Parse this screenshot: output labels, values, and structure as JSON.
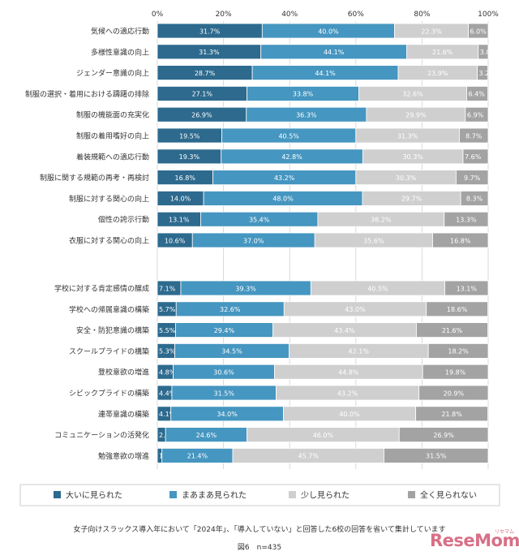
{
  "chart_data": {
    "type": "bar",
    "orientation": "horizontal",
    "stacked": true,
    "percent": true,
    "xlim": [
      0,
      100
    ],
    "x_ticks": [
      "0%",
      "20%",
      "40%",
      "60%",
      "80%",
      "100%"
    ],
    "grid": true,
    "legend_position": "bottom",
    "categories": [
      "気候への適応行動",
      "多様性意識の向上",
      "ジェンダー意識の向上",
      "制服の選択・着用における躊躇の排除",
      "制服の機能面の充実化",
      "制服の着用嗜好の向上",
      "着装規範への適応行動",
      "制服に関する規範の再考・再検討",
      "制服に対する関心の向上",
      "個性の誇示行動",
      "衣服に対する関心の向上",
      "学校に対する肯定感情の醸成",
      "学校への帰属意識の構築",
      "安全・防犯意識の構築",
      "スクールプライドの構築",
      "登校意欲の増進",
      "シビックプライドの構築",
      "連帯意識の構築",
      "コミュニケーションの活発化",
      "勉強意欲の増進"
    ],
    "group_sizes": [
      11,
      9
    ],
    "series": [
      {
        "name": "大いに見られた",
        "color": "#2d6a8e",
        "values": [
          31.7,
          31.3,
          28.7,
          27.1,
          26.9,
          19.5,
          19.3,
          16.8,
          14.0,
          13.1,
          10.6,
          7.1,
          5.7,
          5.5,
          5.3,
          4.8,
          4.4,
          4.1,
          2.5,
          1.4
        ],
        "labels": [
          "31.7%",
          "31.3%",
          "28.7%",
          "27.1%",
          "26.9%",
          "19.5%",
          "19.3%",
          "16.8%",
          "14.0%",
          "13.1%",
          "10.6%",
          "7.1%",
          "5.7%",
          "5.5%",
          "5.3%",
          "4.8%",
          "4.4%",
          "4.1%",
          "2.5%",
          "1.4%"
        ]
      },
      {
        "name": "まあまあ見られた",
        "color": "#4596c0",
        "values": [
          40.0,
          44.1,
          44.1,
          33.8,
          36.3,
          40.5,
          42.8,
          43.2,
          48.0,
          35.4,
          37.0,
          39.3,
          32.6,
          29.4,
          34.5,
          30.6,
          31.5,
          34.0,
          24.6,
          21.4
        ],
        "labels": [
          "40.0%",
          "44.1%",
          "44.1%",
          "33.8%",
          "36.3%",
          "40.5%",
          "42.8%",
          "43.2%",
          "48.0%",
          "35.4%",
          "37.0%",
          "39.3%",
          "32.6%",
          "29.4%",
          "34.5%",
          "30.6%",
          "31.5%",
          "34.0%",
          "24.6%",
          "21.4%"
        ]
      },
      {
        "name": "少し見られた",
        "color": "#cfcfcf",
        "values": [
          22.3,
          21.6,
          23.9,
          32.6,
          29.9,
          31.3,
          30.3,
          30.3,
          29.7,
          38.2,
          35.6,
          40.5,
          43.0,
          43.4,
          42.1,
          44.8,
          43.2,
          40.0,
          46.0,
          45.7
        ],
        "labels": [
          "22.3%",
          "21.6%",
          "23.9%",
          "32.6%",
          "29.9%",
          "31.3%",
          "30.3%",
          "30.3%",
          "29.7%",
          "38.2%",
          "35.6%",
          "40.5%",
          "43.0%",
          "43.4%",
          "42.1%",
          "44.8%",
          "43.2%",
          "40.0%",
          "46.0%",
          "45.7%"
        ]
      },
      {
        "name": "全く見られない",
        "color": "#a3a3a3",
        "values": [
          6.0,
          3.0,
          3.2,
          6.4,
          6.9,
          8.7,
          7.6,
          9.7,
          8.3,
          13.3,
          16.8,
          13.1,
          18.6,
          21.6,
          18.2,
          19.8,
          20.9,
          21.8,
          26.9,
          31.5
        ],
        "labels": [
          "6.0%",
          "3.0%",
          "3.2%",
          "6.4%",
          "6.9%",
          "8.7%",
          "7.6%",
          "9.7%",
          "8.3%",
          "13.3%",
          "16.8%",
          "13.1%",
          "18.6%",
          "21.6%",
          "18.2%",
          "19.8%",
          "20.9%",
          "21.8%",
          "26.9%",
          "31.5%"
        ]
      }
    ],
    "footnote": "女子向けスラックス導入年において「2024年」、「導入していない」と回答した6校の回答を省いて集計しています",
    "figure_label": "図6　n=435"
  },
  "brand": {
    "logo": "ReseMom",
    "logo_sub": "リセマム"
  }
}
